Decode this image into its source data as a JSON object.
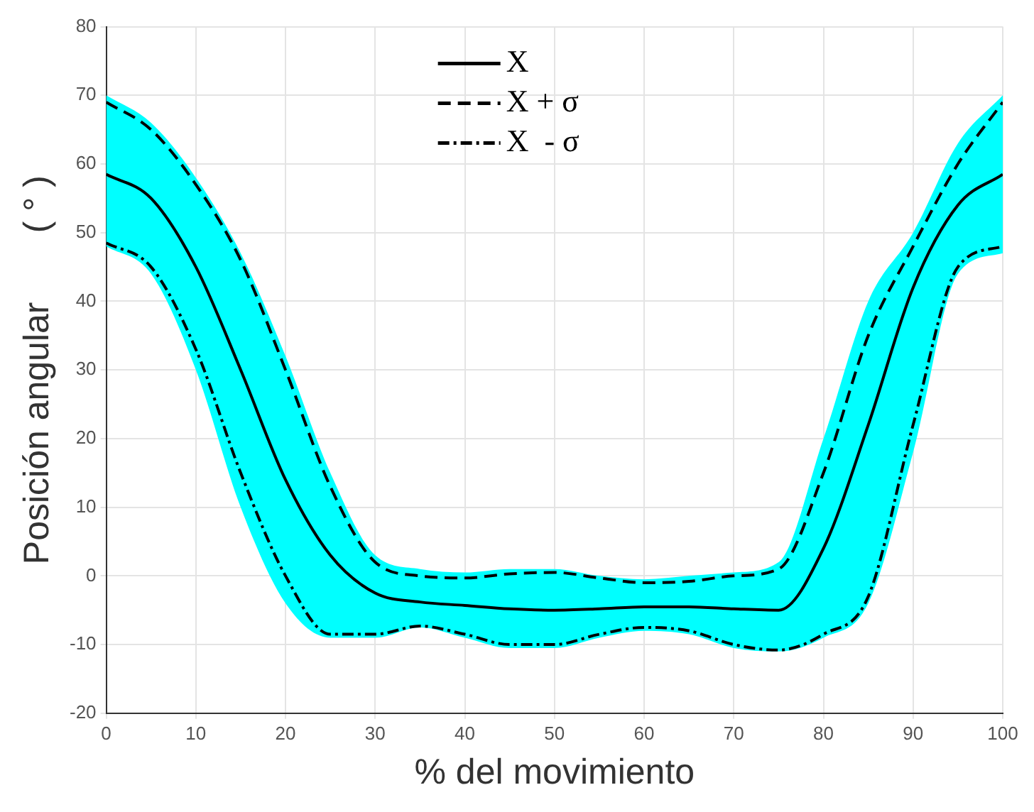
{
  "chart_data": {
    "type": "line",
    "xlabel": "% del movimiento",
    "ylabel": "Posición angular       ( ° )",
    "x": [
      0,
      5,
      10,
      15,
      20,
      25,
      30,
      35,
      40,
      45,
      50,
      55,
      60,
      65,
      70,
      75,
      80,
      85,
      90,
      95,
      100
    ],
    "xlim": [
      0,
      100
    ],
    "xticks": [
      0,
      10,
      20,
      30,
      40,
      50,
      60,
      70,
      80,
      90,
      100
    ],
    "ylim": [
      -20,
      80
    ],
    "yticks": [
      -20,
      -10,
      0,
      10,
      20,
      30,
      40,
      50,
      60,
      70,
      80
    ],
    "grid": true,
    "legend": "top",
    "marker": "none",
    "series": [
      {
        "name": "X",
        "color": "#000000",
        "line_style": "solid",
        "values": [
          58.5,
          55,
          45,
          30,
          14,
          3,
          -2.5,
          -3.8,
          -4.3,
          -4.8,
          -5,
          -4.8,
          -4.5,
          -4.5,
          -4.8,
          -5,
          4,
          22,
          42,
          54,
          58.5
        ],
        "lower": [
          48,
          44,
          30,
          10,
          -4,
          -9,
          -9,
          -7.5,
          -9,
          -10.5,
          -10.5,
          -9,
          -8,
          -8.5,
          -10.5,
          -11,
          -9,
          -4,
          18,
          44,
          47
        ],
        "upper": [
          70,
          66,
          58,
          47,
          32,
          15,
          3,
          1,
          0.5,
          1,
          1,
          0,
          -0.5,
          0,
          0.5,
          2,
          20,
          40,
          50,
          63,
          70
        ]
      },
      {
        "name": "X + σ",
        "color": "#000000",
        "line_style": "dashed",
        "values": [
          69,
          65,
          57,
          46,
          30,
          13,
          2,
          0,
          -0.3,
          0.3,
          0.5,
          -0.3,
          -1,
          -0.8,
          0,
          1,
          15,
          35,
          48,
          60,
          69
        ]
      },
      {
        "name": "X  - σ",
        "color": "#000000",
        "line_style": "dashdot",
        "values": [
          48.5,
          45,
          33,
          15,
          0,
          -8.5,
          -8.5,
          -7.3,
          -8.5,
          -10,
          -10,
          -8.5,
          -7.5,
          -8,
          -10,
          -10.8,
          -8.5,
          -3,
          22,
          45,
          48
        ]
      }
    ]
  }
}
